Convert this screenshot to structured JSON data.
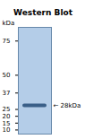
{
  "chart_data": {
    "type": "blot",
    "title": "Western Blot",
    "ylabel": "kDa",
    "values": [
      28
    ],
    "color": "#3a5f88",
    "annotations": [
      {
        "text": "← 28kDa",
        "y": 28
      }
    ],
    "ylim": [
      7,
      85
    ],
    "yticks": [
      10,
      15,
      20,
      25,
      37,
      50,
      75
    ]
  }
}
